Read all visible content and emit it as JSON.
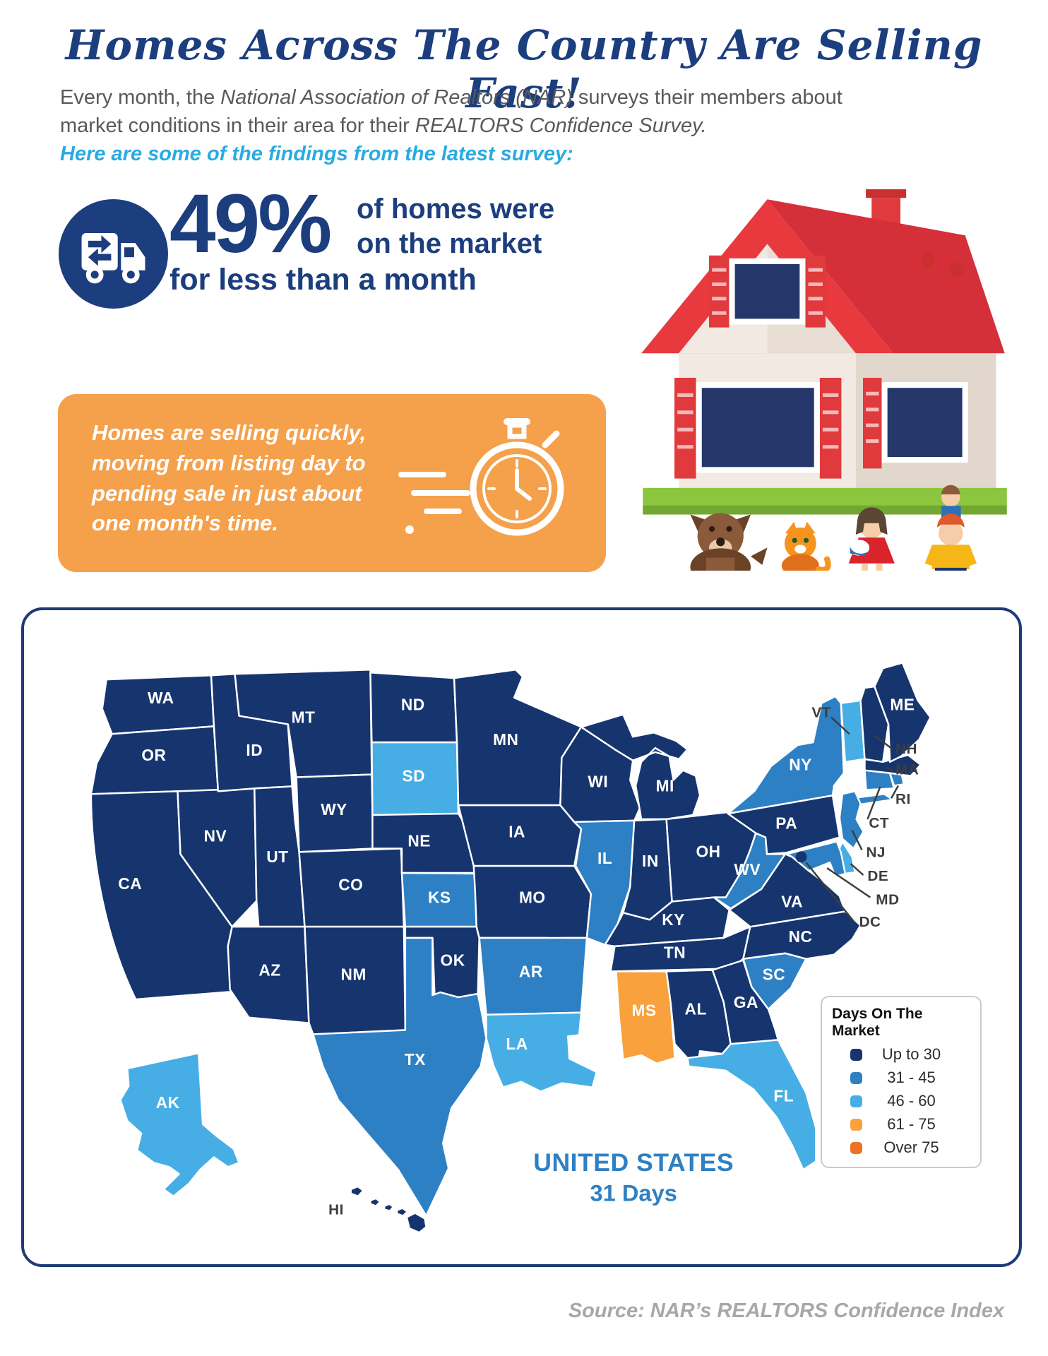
{
  "header": {
    "title": "Homes Across The Country Are Selling Fast!",
    "intro": {
      "p1": "Every month, the ",
      "i1": "National Association of Realtors (NAR)",
      "p2": " surveys their members about market conditions in their area for their ",
      "i2": "REALTORS Confidence Survey."
    },
    "sub": "Here are some of the findings from the latest survey:"
  },
  "stat": {
    "value": "49%",
    "line1": "of homes were",
    "line2": "on the market",
    "line3": "for less than a month"
  },
  "callout": {
    "text": "Homes are selling quickly, moving from listing day to pending sale in just about one month's time."
  },
  "colors": {
    "heading_navy": "#1C3E7E",
    "accent_blue": "#29ABE2",
    "callout_orange": "#F5A04B",
    "map_border_navy": "#1E3B77",
    "us_text_blue": "#2E80C4",
    "source_gray": "#A6A8AB"
  },
  "chart_data": {
    "type": "choropleth",
    "title": "Days On The Market",
    "region": "United States",
    "us_label": "UNITED STATES",
    "us_value": "31 Days",
    "legend_position": "bottom-right",
    "bins": [
      {
        "label": "Up to 30",
        "color": "#16356F"
      },
      {
        "label": "31 - 45",
        "color": "#2E80C4"
      },
      {
        "label": "46 - 60",
        "color": "#47AEE5"
      },
      {
        "label": "61 - 75",
        "color": "#F9A13C"
      },
      {
        "label": "Over 75",
        "color": "#EE7124"
      }
    ],
    "states": [
      {
        "abbr": "WA",
        "bucket": 0
      },
      {
        "abbr": "OR",
        "bucket": 0
      },
      {
        "abbr": "CA",
        "bucket": 0
      },
      {
        "abbr": "NV",
        "bucket": 0
      },
      {
        "abbr": "ID",
        "bucket": 0
      },
      {
        "abbr": "MT",
        "bucket": 0
      },
      {
        "abbr": "WY",
        "bucket": 0
      },
      {
        "abbr": "UT",
        "bucket": 0
      },
      {
        "abbr": "CO",
        "bucket": 0
      },
      {
        "abbr": "AZ",
        "bucket": 0
      },
      {
        "abbr": "NM",
        "bucket": 0
      },
      {
        "abbr": "ND",
        "bucket": 0
      },
      {
        "abbr": "SD",
        "bucket": 2
      },
      {
        "abbr": "NE",
        "bucket": 0
      },
      {
        "abbr": "KS",
        "bucket": 1
      },
      {
        "abbr": "OK",
        "bucket": 0
      },
      {
        "abbr": "TX",
        "bucket": 1
      },
      {
        "abbr": "MN",
        "bucket": 0
      },
      {
        "abbr": "IA",
        "bucket": 0
      },
      {
        "abbr": "MO",
        "bucket": 0
      },
      {
        "abbr": "AR",
        "bucket": 1
      },
      {
        "abbr": "LA",
        "bucket": 2
      },
      {
        "abbr": "WI",
        "bucket": 0
      },
      {
        "abbr": "MI",
        "bucket": 0
      },
      {
        "abbr": "IL",
        "bucket": 1
      },
      {
        "abbr": "IN",
        "bucket": 0
      },
      {
        "abbr": "OH",
        "bucket": 0
      },
      {
        "abbr": "KY",
        "bucket": 0
      },
      {
        "abbr": "TN",
        "bucket": 0
      },
      {
        "abbr": "MS",
        "bucket": 3
      },
      {
        "abbr": "AL",
        "bucket": 0
      },
      {
        "abbr": "GA",
        "bucket": 0
      },
      {
        "abbr": "FL",
        "bucket": 2
      },
      {
        "abbr": "SC",
        "bucket": 1
      },
      {
        "abbr": "NC",
        "bucket": 0
      },
      {
        "abbr": "VA",
        "bucket": 0
      },
      {
        "abbr": "WV",
        "bucket": 1
      },
      {
        "abbr": "PA",
        "bucket": 0
      },
      {
        "abbr": "NY",
        "bucket": 1
      },
      {
        "abbr": "NJ",
        "bucket": 1
      },
      {
        "abbr": "DE",
        "bucket": 2
      },
      {
        "abbr": "MD",
        "bucket": 1
      },
      {
        "abbr": "DC",
        "bucket": 0
      },
      {
        "abbr": "CT",
        "bucket": 1
      },
      {
        "abbr": "RI",
        "bucket": 1
      },
      {
        "abbr": "MA",
        "bucket": 0
      },
      {
        "abbr": "VT",
        "bucket": 2
      },
      {
        "abbr": "NH",
        "bucket": 0
      },
      {
        "abbr": "ME",
        "bucket": 0
      },
      {
        "abbr": "AK",
        "bucket": 2
      },
      {
        "abbr": "HI",
        "bucket": 0
      }
    ]
  },
  "source": "Source: NAR’s REALTORS Confidence Index"
}
